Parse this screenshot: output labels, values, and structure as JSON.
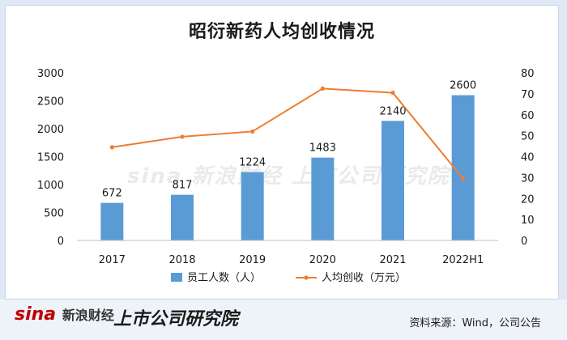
{
  "chart_data": {
    "type": "bar",
    "title": "昭衍新药人均创收情况",
    "categories": [
      "2017",
      "2018",
      "2019",
      "2020",
      "2021",
      "2022H1"
    ],
    "series": [
      {
        "name": "员工人数（人）",
        "kind": "bar",
        "axis": "left",
        "values": [
          672,
          817,
          1224,
          1483,
          2140,
          2600
        ],
        "color": "#5b9bd5"
      },
      {
        "name": "人均创收（万元）",
        "kind": "line",
        "axis": "right",
        "values": [
          44.5,
          49.5,
          52,
          72.5,
          70.5,
          29.5
        ],
        "color": "#ed7d31"
      }
    ],
    "ylim_left": [
      0,
      3000
    ],
    "yticks_left": [
      "0",
      "500",
      "1000",
      "1500",
      "2000",
      "2500",
      "3000"
    ],
    "ylim_right": [
      0,
      80
    ],
    "yticks_right": [
      "0",
      "10",
      "20",
      "30",
      "40",
      "50",
      "60",
      "70",
      "80"
    ],
    "bar_labels": [
      "672",
      "817",
      "1224",
      "1483",
      "2140",
      "2600"
    ],
    "legend_position": "bottom",
    "grid": false
  },
  "footer": {
    "brand_sina": "sina",
    "brand_sina_cn": "新浪财经",
    "brand_lab": "上市公司研究院",
    "source": "资料来源：Wind，公司公告"
  },
  "watermark": "sina 新浪财经  上市公司研究院"
}
